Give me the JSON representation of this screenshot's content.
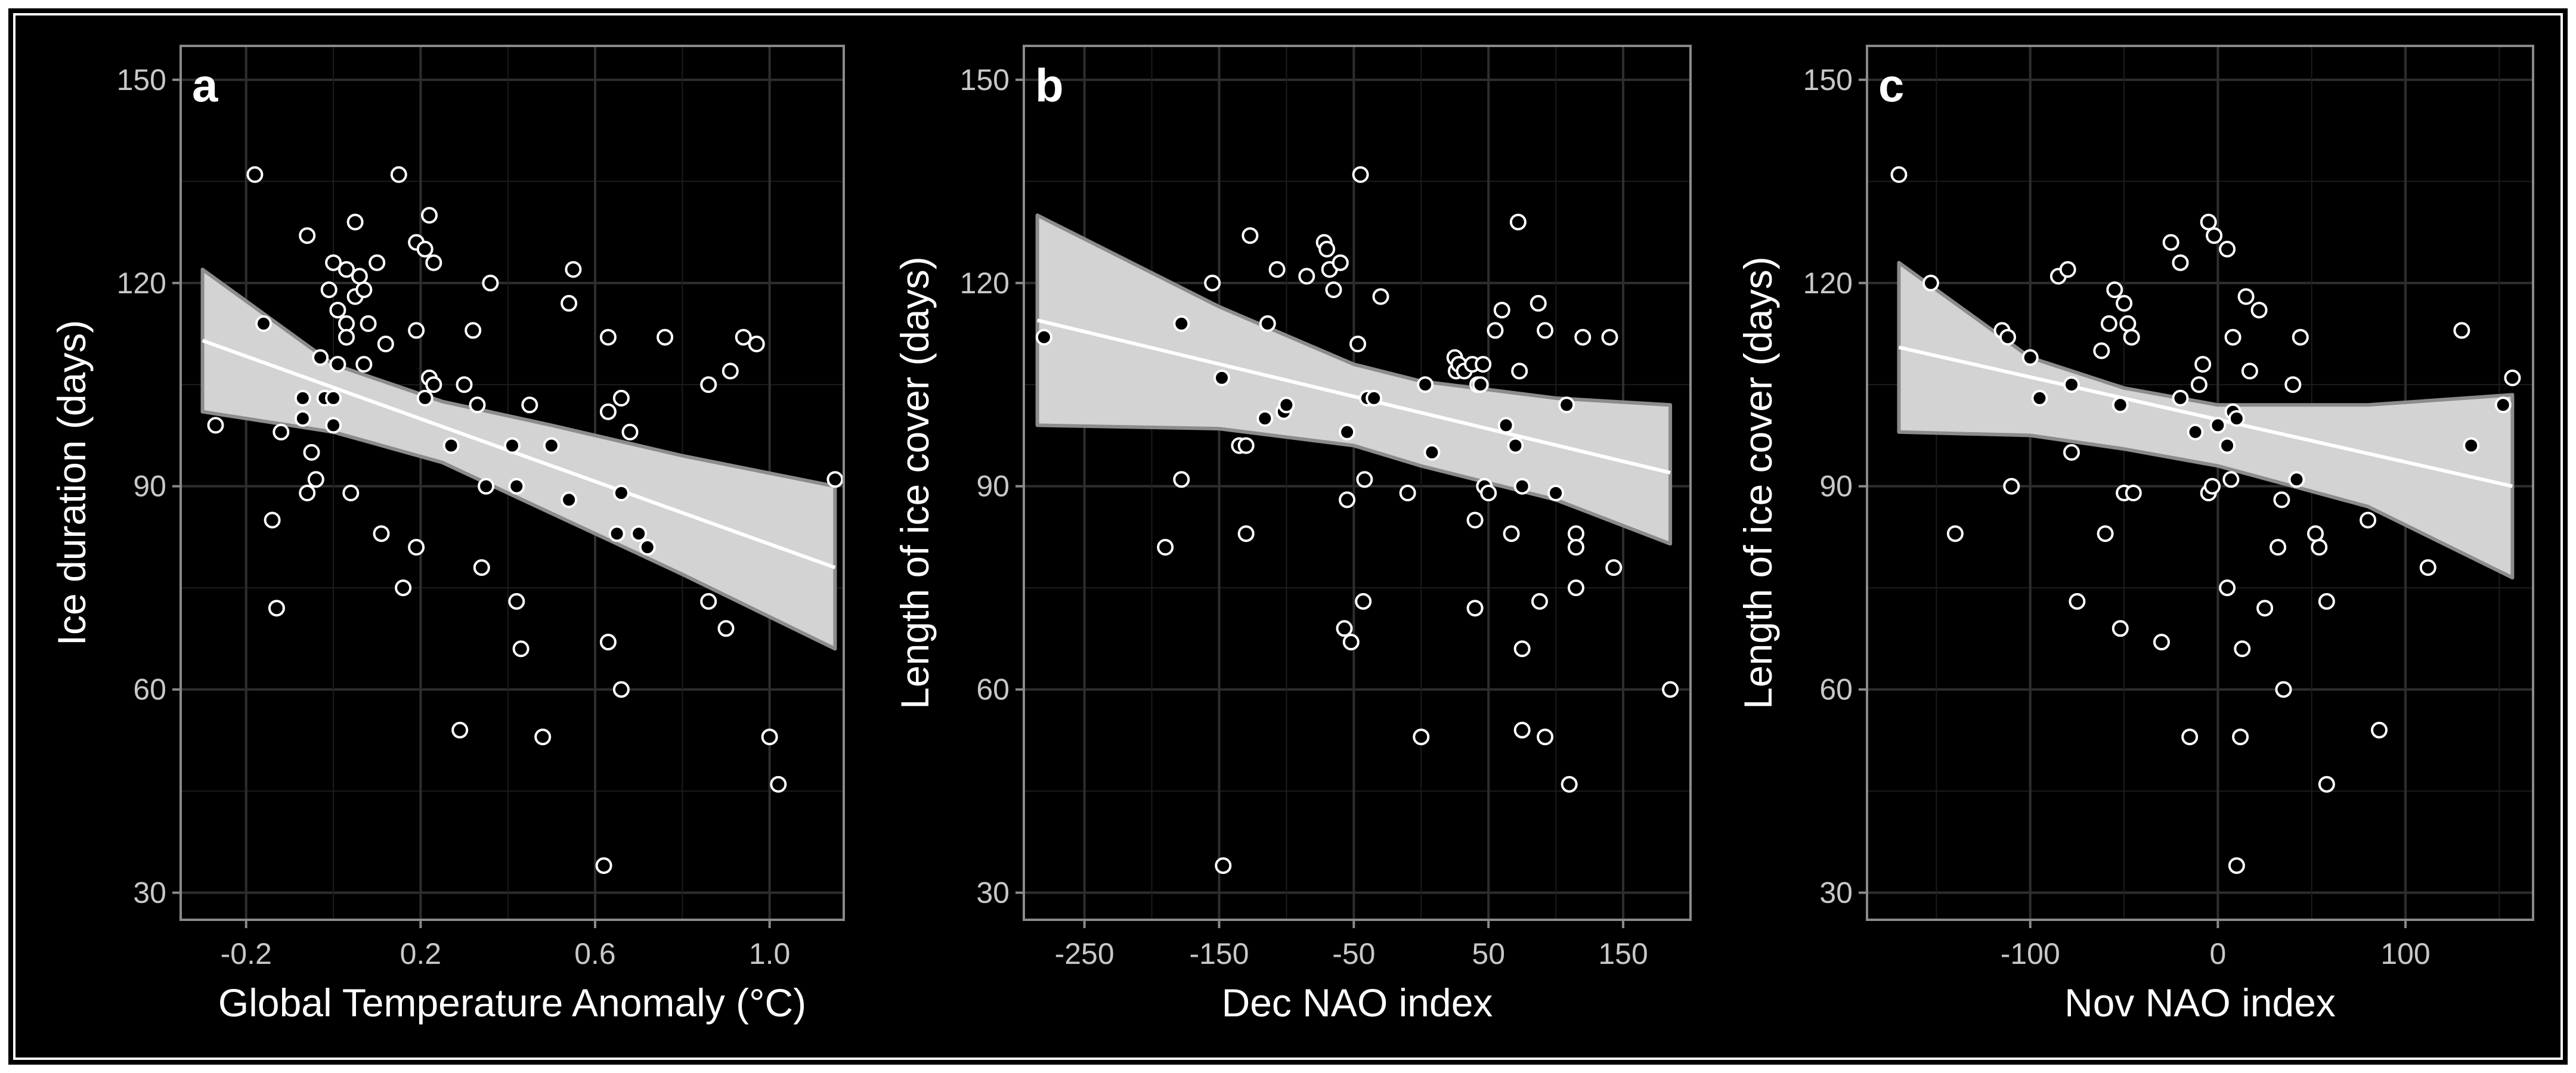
{
  "chart_data": [
    {
      "type": "scatter",
      "panel_label": "a",
      "xlabel": "Global Temperature Anomaly (°C)",
      "ylabel": "Ice duration (days)",
      "xlim": [
        -0.35,
        1.17
      ],
      "ylim": [
        26,
        155
      ],
      "xticks": [
        -0.2,
        0.2,
        0.6,
        1.0
      ],
      "xtick_labels": [
        "-0.2",
        "0.2",
        "0.6",
        "1.0"
      ],
      "yticks": [
        30,
        60,
        90,
        120,
        150
      ],
      "ytick_labels": [
        "30",
        "60",
        "90",
        "120",
        "150"
      ],
      "grid": true,
      "trend_line": {
        "x": [
          -0.3,
          1.15
        ],
        "y": [
          111.5,
          78
        ]
      },
      "confidence_band": {
        "x": [
          -0.3,
          0.0,
          0.25,
          0.5,
          0.8,
          1.15
        ],
        "lower": [
          101,
          98,
          93.5,
          86,
          77,
          66
        ],
        "upper": [
          122,
          108,
          102.5,
          99,
          94.5,
          90
        ]
      },
      "points": [
        {
          "x": -0.27,
          "y": 99
        },
        {
          "x": -0.18,
          "y": 136
        },
        {
          "x": -0.16,
          "y": 114
        },
        {
          "x": -0.14,
          "y": 85
        },
        {
          "x": -0.13,
          "y": 72
        },
        {
          "x": -0.12,
          "y": 98
        },
        {
          "x": -0.07,
          "y": 103
        },
        {
          "x": -0.07,
          "y": 100
        },
        {
          "x": -0.06,
          "y": 127
        },
        {
          "x": -0.06,
          "y": 89
        },
        {
          "x": -0.05,
          "y": 95
        },
        {
          "x": -0.04,
          "y": 91
        },
        {
          "x": -0.03,
          "y": 109
        },
        {
          "x": -0.02,
          "y": 103
        },
        {
          "x": -0.01,
          "y": 119
        },
        {
          "x": 0.0,
          "y": 123
        },
        {
          "x": 0.0,
          "y": 103
        },
        {
          "x": 0.0,
          "y": 99
        },
        {
          "x": 0.01,
          "y": 116
        },
        {
          "x": 0.01,
          "y": 108
        },
        {
          "x": 0.03,
          "y": 122
        },
        {
          "x": 0.03,
          "y": 114
        },
        {
          "x": 0.03,
          "y": 112
        },
        {
          "x": 0.04,
          "y": 89
        },
        {
          "x": 0.05,
          "y": 129
        },
        {
          "x": 0.05,
          "y": 118
        },
        {
          "x": 0.06,
          "y": 121
        },
        {
          "x": 0.07,
          "y": 119
        },
        {
          "x": 0.07,
          "y": 108
        },
        {
          "x": 0.08,
          "y": 114
        },
        {
          "x": 0.1,
          "y": 123
        },
        {
          "x": 0.11,
          "y": 83
        },
        {
          "x": 0.12,
          "y": 111
        },
        {
          "x": 0.15,
          "y": 136
        },
        {
          "x": 0.16,
          "y": 75
        },
        {
          "x": 0.19,
          "y": 126
        },
        {
          "x": 0.19,
          "y": 113
        },
        {
          "x": 0.19,
          "y": 81
        },
        {
          "x": 0.21,
          "y": 125
        },
        {
          "x": 0.21,
          "y": 103
        },
        {
          "x": 0.22,
          "y": 130
        },
        {
          "x": 0.22,
          "y": 106
        },
        {
          "x": 0.23,
          "y": 123
        },
        {
          "x": 0.23,
          "y": 105
        },
        {
          "x": 0.27,
          "y": 96
        },
        {
          "x": 0.29,
          "y": 54
        },
        {
          "x": 0.3,
          "y": 105
        },
        {
          "x": 0.32,
          "y": 113
        },
        {
          "x": 0.33,
          "y": 102
        },
        {
          "x": 0.34,
          "y": 78
        },
        {
          "x": 0.35,
          "y": 90
        },
        {
          "x": 0.36,
          "y": 120
        },
        {
          "x": 0.41,
          "y": 96
        },
        {
          "x": 0.42,
          "y": 90
        },
        {
          "x": 0.42,
          "y": 73
        },
        {
          "x": 0.43,
          "y": 66
        },
        {
          "x": 0.45,
          "y": 102
        },
        {
          "x": 0.48,
          "y": 53
        },
        {
          "x": 0.5,
          "y": 96
        },
        {
          "x": 0.54,
          "y": 117
        },
        {
          "x": 0.54,
          "y": 88
        },
        {
          "x": 0.55,
          "y": 122
        },
        {
          "x": 0.62,
          "y": 34
        },
        {
          "x": 0.63,
          "y": 112
        },
        {
          "x": 0.63,
          "y": 101
        },
        {
          "x": 0.63,
          "y": 67
        },
        {
          "x": 0.65,
          "y": 83
        },
        {
          "x": 0.66,
          "y": 103
        },
        {
          "x": 0.66,
          "y": 89
        },
        {
          "x": 0.66,
          "y": 60
        },
        {
          "x": 0.68,
          "y": 98
        },
        {
          "x": 0.7,
          "y": 83
        },
        {
          "x": 0.72,
          "y": 81
        },
        {
          "x": 0.76,
          "y": 112
        },
        {
          "x": 0.86,
          "y": 105
        },
        {
          "x": 0.86,
          "y": 73
        },
        {
          "x": 0.9,
          "y": 69
        },
        {
          "x": 0.91,
          "y": 107
        },
        {
          "x": 0.94,
          "y": 112
        },
        {
          "x": 0.97,
          "y": 111
        },
        {
          "x": 1.0,
          "y": 53
        },
        {
          "x": 1.02,
          "y": 46
        },
        {
          "x": 1.15,
          "y": 91
        }
      ]
    },
    {
      "type": "scatter",
      "panel_label": "b",
      "xlabel": "Dec NAO index",
      "ylabel": "Length of ice cover (days)",
      "xlim": [
        -295,
        200
      ],
      "ylim": [
        26,
        155
      ],
      "xticks": [
        -250,
        -150,
        -50,
        50,
        150
      ],
      "xtick_labels": [
        "-250",
        "-150",
        "-50",
        "50",
        "150"
      ],
      "yticks": [
        30,
        60,
        90,
        120,
        150
      ],
      "ytick_labels": [
        "30",
        "60",
        "90",
        "120",
        "150"
      ],
      "grid": true,
      "trend_line": {
        "x": [
          -285,
          185
        ],
        "y": [
          114.5,
          92
        ]
      },
      "confidence_band": {
        "x": [
          -285,
          -150,
          -50,
          0,
          100,
          185
        ],
        "lower": [
          99,
          98.5,
          96,
          93,
          88,
          81.5
        ],
        "upper": [
          130,
          116.5,
          108,
          105.5,
          103,
          102
        ]
      },
      "points": [
        {
          "x": -280,
          "y": 112
        },
        {
          "x": -190,
          "y": 81
        },
        {
          "x": -178,
          "y": 114
        },
        {
          "x": -178,
          "y": 91
        },
        {
          "x": -155,
          "y": 120
        },
        {
          "x": -148,
          "y": 106
        },
        {
          "x": -147,
          "y": 34
        },
        {
          "x": -135,
          "y": 96
        },
        {
          "x": -130,
          "y": 96
        },
        {
          "x": -130,
          "y": 83
        },
        {
          "x": -127,
          "y": 127
        },
        {
          "x": -116,
          "y": 100
        },
        {
          "x": -114,
          "y": 114
        },
        {
          "x": -107,
          "y": 122
        },
        {
          "x": -102,
          "y": 101
        },
        {
          "x": -100,
          "y": 102
        },
        {
          "x": -85,
          "y": 121
        },
        {
          "x": -72,
          "y": 126
        },
        {
          "x": -70,
          "y": 125
        },
        {
          "x": -68,
          "y": 122
        },
        {
          "x": -65,
          "y": 119
        },
        {
          "x": -60,
          "y": 123
        },
        {
          "x": -57,
          "y": 69
        },
        {
          "x": -55,
          "y": 98
        },
        {
          "x": -55,
          "y": 88
        },
        {
          "x": -52,
          "y": 67
        },
        {
          "x": -47,
          "y": 111
        },
        {
          "x": -45,
          "y": 136
        },
        {
          "x": -43,
          "y": 73
        },
        {
          "x": -42,
          "y": 91
        },
        {
          "x": -40,
          "y": 103
        },
        {
          "x": -35,
          "y": 103
        },
        {
          "x": -30,
          "y": 118
        },
        {
          "x": -10,
          "y": 89
        },
        {
          "x": 0,
          "y": 53
        },
        {
          "x": 3,
          "y": 105
        },
        {
          "x": 8,
          "y": 95
        },
        {
          "x": 25,
          "y": 109
        },
        {
          "x": 26,
          "y": 107
        },
        {
          "x": 28,
          "y": 108
        },
        {
          "x": 32,
          "y": 107
        },
        {
          "x": 38,
          "y": 108
        },
        {
          "x": 40,
          "y": 85
        },
        {
          "x": 40,
          "y": 72
        },
        {
          "x": 42,
          "y": 105
        },
        {
          "x": 44,
          "y": 105
        },
        {
          "x": 46,
          "y": 108
        },
        {
          "x": 47,
          "y": 90
        },
        {
          "x": 50,
          "y": 89
        },
        {
          "x": 55,
          "y": 113
        },
        {
          "x": 60,
          "y": 116
        },
        {
          "x": 63,
          "y": 99
        },
        {
          "x": 67,
          "y": 83
        },
        {
          "x": 70,
          "y": 96
        },
        {
          "x": 72,
          "y": 129
        },
        {
          "x": 73,
          "y": 107
        },
        {
          "x": 75,
          "y": 90
        },
        {
          "x": 75,
          "y": 66
        },
        {
          "x": 75,
          "y": 54
        },
        {
          "x": 87,
          "y": 117
        },
        {
          "x": 88,
          "y": 73
        },
        {
          "x": 92,
          "y": 113
        },
        {
          "x": 92,
          "y": 53
        },
        {
          "x": 100,
          "y": 89
        },
        {
          "x": 108,
          "y": 102
        },
        {
          "x": 110,
          "y": 46
        },
        {
          "x": 115,
          "y": 83
        },
        {
          "x": 115,
          "y": 81
        },
        {
          "x": 115,
          "y": 75
        },
        {
          "x": 120,
          "y": 112
        },
        {
          "x": 140,
          "y": 112
        },
        {
          "x": 143,
          "y": 78
        },
        {
          "x": 185,
          "y": 60
        }
      ]
    },
    {
      "type": "scatter",
      "panel_label": "c",
      "xlabel": "Nov NAO index",
      "ylabel": "Length of ice cover (days)",
      "xlim": [
        -187,
        168
      ],
      "ylim": [
        26,
        155
      ],
      "xticks": [
        -100,
        0,
        100
      ],
      "xtick_labels": [
        "-100",
        "0",
        "100"
      ],
      "yticks": [
        30,
        60,
        90,
        120,
        150
      ],
      "ytick_labels": [
        "30",
        "60",
        "90",
        "120",
        "150"
      ],
      "grid": true,
      "trend_line": {
        "x": [
          -170,
          157
        ],
        "y": [
          110.5,
          90
        ]
      },
      "confidence_band": {
        "x": [
          -170,
          -100,
          -50,
          0,
          80,
          157
        ],
        "lower": [
          98,
          97.5,
          95.5,
          93,
          87,
          76.5
        ],
        "upper": [
          123,
          109,
          104.5,
          102,
          102,
          103.5
        ]
      },
      "points": [
        {
          "x": -170,
          "y": 136
        },
        {
          "x": -153,
          "y": 120
        },
        {
          "x": -140,
          "y": 83
        },
        {
          "x": -115,
          "y": 113
        },
        {
          "x": -112,
          "y": 112
        },
        {
          "x": -110,
          "y": 90
        },
        {
          "x": -100,
          "y": 109
        },
        {
          "x": -95,
          "y": 103
        },
        {
          "x": -85,
          "y": 121
        },
        {
          "x": -80,
          "y": 122
        },
        {
          "x": -78,
          "y": 95
        },
        {
          "x": -78,
          "y": 105
        },
        {
          "x": -75,
          "y": 73
        },
        {
          "x": -62,
          "y": 110
        },
        {
          "x": -60,
          "y": 83
        },
        {
          "x": -58,
          "y": 114
        },
        {
          "x": -55,
          "y": 119
        },
        {
          "x": -52,
          "y": 102
        },
        {
          "x": -52,
          "y": 69
        },
        {
          "x": -50,
          "y": 117
        },
        {
          "x": -50,
          "y": 89
        },
        {
          "x": -48,
          "y": 114
        },
        {
          "x": -46,
          "y": 112
        },
        {
          "x": -45,
          "y": 89
        },
        {
          "x": -30,
          "y": 67
        },
        {
          "x": -25,
          "y": 126
        },
        {
          "x": -20,
          "y": 123
        },
        {
          "x": -20,
          "y": 103
        },
        {
          "x": -15,
          "y": 53
        },
        {
          "x": -12,
          "y": 98
        },
        {
          "x": -10,
          "y": 105
        },
        {
          "x": -8,
          "y": 108
        },
        {
          "x": -5,
          "y": 129
        },
        {
          "x": -5,
          "y": 89
        },
        {
          "x": -3,
          "y": 90
        },
        {
          "x": -2,
          "y": 127
        },
        {
          "x": 0,
          "y": 99
        },
        {
          "x": 5,
          "y": 75
        },
        {
          "x": 5,
          "y": 96
        },
        {
          "x": 5,
          "y": 125
        },
        {
          "x": 7,
          "y": 91
        },
        {
          "x": 8,
          "y": 101
        },
        {
          "x": 8,
          "y": 112
        },
        {
          "x": 10,
          "y": 100
        },
        {
          "x": 10,
          "y": 34
        },
        {
          "x": 12,
          "y": 53
        },
        {
          "x": 13,
          "y": 66
        },
        {
          "x": 15,
          "y": 118
        },
        {
          "x": 17,
          "y": 107
        },
        {
          "x": 22,
          "y": 116
        },
        {
          "x": 25,
          "y": 72
        },
        {
          "x": 32,
          "y": 81
        },
        {
          "x": 34,
          "y": 88
        },
        {
          "x": 35,
          "y": 60
        },
        {
          "x": 40,
          "y": 105
        },
        {
          "x": 42,
          "y": 91
        },
        {
          "x": 44,
          "y": 112
        },
        {
          "x": 52,
          "y": 83
        },
        {
          "x": 54,
          "y": 81
        },
        {
          "x": 58,
          "y": 73
        },
        {
          "x": 58,
          "y": 46
        },
        {
          "x": 80,
          "y": 85
        },
        {
          "x": 86,
          "y": 54
        },
        {
          "x": 112,
          "y": 78
        },
        {
          "x": 130,
          "y": 113
        },
        {
          "x": 135,
          "y": 96
        },
        {
          "x": 152,
          "y": 102
        },
        {
          "x": 157,
          "y": 106
        }
      ]
    }
  ]
}
